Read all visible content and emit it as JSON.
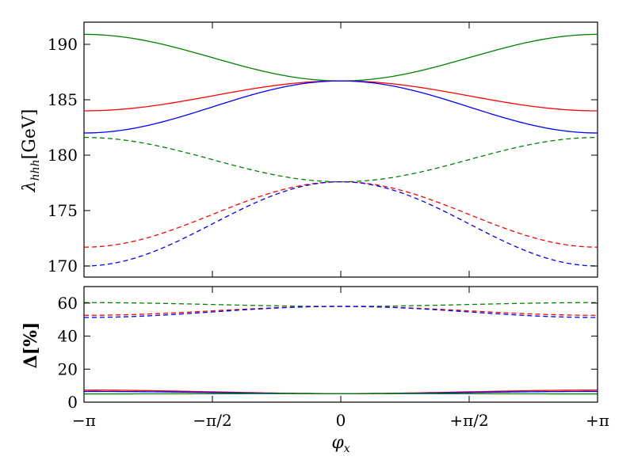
{
  "chart_data": [
    {
      "type": "line",
      "ylabel": "λ_hhh[GeV]",
      "ylabel_main": "λ",
      "ylabel_sub": "hhh",
      "ylabel_unit": "[GeV]",
      "xlim": [
        -3.14159,
        3.14159
      ],
      "ylim": [
        169,
        192
      ],
      "grid": false,
      "yticks": [
        170,
        175,
        180,
        185,
        190
      ],
      "ytick_labels": [
        "170",
        "175",
        "180",
        "185",
        "190"
      ],
      "series": [
        {
          "color": "#008000",
          "style": "solid",
          "at_minus_pi": 190.9,
          "at_zero": 186.7,
          "at_plus_pi": 190.9
        },
        {
          "color": "#ff0000",
          "style": "solid",
          "at_minus_pi": 184.0,
          "at_zero": 186.7,
          "at_plus_pi": 184.0
        },
        {
          "color": "#0000ff",
          "style": "solid",
          "at_minus_pi": 182.0,
          "at_zero": 186.7,
          "at_plus_pi": 182.0
        },
        {
          "color": "#008000",
          "style": "dashed",
          "at_minus_pi": 181.6,
          "at_zero": 177.6,
          "at_plus_pi": 181.6
        },
        {
          "color": "#ff0000",
          "style": "dashed",
          "at_minus_pi": 171.7,
          "at_zero": 177.6,
          "at_plus_pi": 171.7
        },
        {
          "color": "#0000ff",
          "style": "dashed",
          "at_minus_pi": 170.0,
          "at_zero": 177.6,
          "at_plus_pi": 170.0
        }
      ]
    },
    {
      "type": "line",
      "ylabel": "Δ[%]",
      "xlabel": "φ_x",
      "xlabel_main": "φ",
      "xlabel_sub": "x",
      "xlim": [
        -3.14159,
        3.14159
      ],
      "ylim": [
        0,
        70
      ],
      "grid": false,
      "yticks": [
        0,
        20,
        40,
        60
      ],
      "ytick_labels": [
        "0",
        "20",
        "40",
        "60"
      ],
      "xticks": [
        -3.14159,
        -1.5708,
        0,
        1.5708,
        3.14159
      ],
      "xtick_labels": [
        "−π",
        "−π/2",
        "0",
        "+π/2",
        "+π"
      ],
      "series": [
        {
          "color": "#008000",
          "style": "dashed",
          "at_minus_pi": 60.3,
          "at_zero": 58.0,
          "at_plus_pi": 60.3
        },
        {
          "color": "#ff0000",
          "style": "dashed",
          "at_minus_pi": 52.6,
          "at_zero": 58.0,
          "at_plus_pi": 52.6
        },
        {
          "color": "#0000ff",
          "style": "dashed",
          "at_minus_pi": 51.3,
          "at_zero": 58.0,
          "at_plus_pi": 51.3
        },
        {
          "color": "#ff0000",
          "style": "solid",
          "at_minus_pi": 7.3,
          "at_zero": 5.2,
          "at_plus_pi": 7.3
        },
        {
          "color": "#0000ff",
          "style": "solid",
          "at_minus_pi": 6.5,
          "at_zero": 5.2,
          "at_plus_pi": 6.5
        },
        {
          "color": "#008000",
          "style": "solid",
          "at_minus_pi": 5.0,
          "at_zero": 5.2,
          "at_plus_pi": 5.0
        }
      ]
    }
  ]
}
